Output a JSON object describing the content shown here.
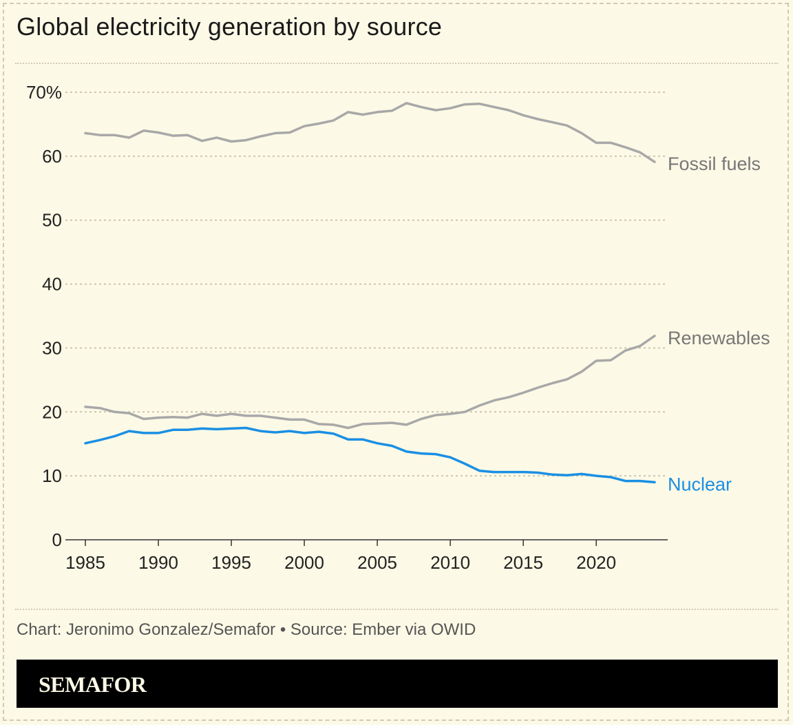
{
  "header": {
    "title": "Global electricity generation by source"
  },
  "footer": {
    "credit": "Chart: Jeronimo Gonzalez/Semafor • Source: Ember via OWID",
    "brand": "SEMAFOR"
  },
  "colors": {
    "background": "#FCF9E6",
    "fossil": "#A8A8A8",
    "renewables": "#A8A8A8",
    "nuclear": "#1A8FE3",
    "label_gray": "#777777",
    "brand_bar": "#000000"
  },
  "chart_data": {
    "type": "line",
    "title": "Global electricity generation by source",
    "xlabel": "",
    "ylabel": "",
    "ylim": [
      0,
      70
    ],
    "xlim": [
      1985,
      2024
    ],
    "yticks": [
      0,
      10,
      20,
      30,
      40,
      50,
      60,
      70
    ],
    "ytick_labels": [
      "0",
      "10",
      "20",
      "30",
      "40",
      "50",
      "60",
      "70%"
    ],
    "xticks": [
      1985,
      1990,
      1995,
      2000,
      2005,
      2010,
      2015,
      2020
    ],
    "xtick_labels": [
      "1985",
      "1990",
      "1995",
      "2000",
      "2005",
      "2010",
      "2015",
      "2020"
    ],
    "grid": true,
    "legend": "direct labels at line ends",
    "x": [
      1985,
      1986,
      1987,
      1988,
      1989,
      1990,
      1991,
      1992,
      1993,
      1994,
      1995,
      1996,
      1997,
      1998,
      1999,
      2000,
      2001,
      2002,
      2003,
      2004,
      2005,
      2006,
      2007,
      2008,
      2009,
      2010,
      2011,
      2012,
      2013,
      2014,
      2015,
      2016,
      2017,
      2018,
      2019,
      2020,
      2021,
      2022,
      2023,
      2024
    ],
    "series": [
      {
        "name": "Fossil fuels",
        "color": "#A8A8A8",
        "values": [
          63.6,
          63.3,
          63.3,
          62.9,
          64.0,
          63.7,
          63.2,
          63.3,
          62.4,
          62.9,
          62.3,
          62.5,
          63.1,
          63.6,
          63.7,
          64.7,
          65.1,
          65.6,
          66.9,
          66.5,
          66.9,
          67.1,
          68.3,
          67.7,
          67.2,
          67.5,
          68.1,
          68.2,
          67.7,
          67.2,
          66.4,
          65.8,
          65.3,
          64.8,
          63.6,
          62.1,
          62.1,
          61.4,
          60.6,
          59.1
        ]
      },
      {
        "name": "Renewables",
        "color": "#A8A8A8",
        "values": [
          20.8,
          20.6,
          20.0,
          19.8,
          18.9,
          19.1,
          19.2,
          19.1,
          19.7,
          19.4,
          19.7,
          19.4,
          19.4,
          19.1,
          18.8,
          18.8,
          18.1,
          18.0,
          17.5,
          18.1,
          18.2,
          18.3,
          18.0,
          18.9,
          19.5,
          19.7,
          20.0,
          21.0,
          21.8,
          22.3,
          23.0,
          23.8,
          24.5,
          25.1,
          26.3,
          28.0,
          28.1,
          29.6,
          30.3,
          31.9
        ]
      },
      {
        "name": "Nuclear",
        "color": "#1A8FE3",
        "values": [
          15.1,
          15.6,
          16.2,
          17.0,
          16.7,
          16.7,
          17.2,
          17.2,
          17.4,
          17.3,
          17.4,
          17.5,
          17.0,
          16.8,
          17.0,
          16.7,
          16.9,
          16.6,
          15.7,
          15.7,
          15.1,
          14.7,
          13.8,
          13.5,
          13.4,
          12.9,
          11.9,
          10.8,
          10.6,
          10.6,
          10.6,
          10.5,
          10.2,
          10.1,
          10.3,
          10.0,
          9.8,
          9.2,
          9.2,
          9.0
        ]
      }
    ]
  }
}
